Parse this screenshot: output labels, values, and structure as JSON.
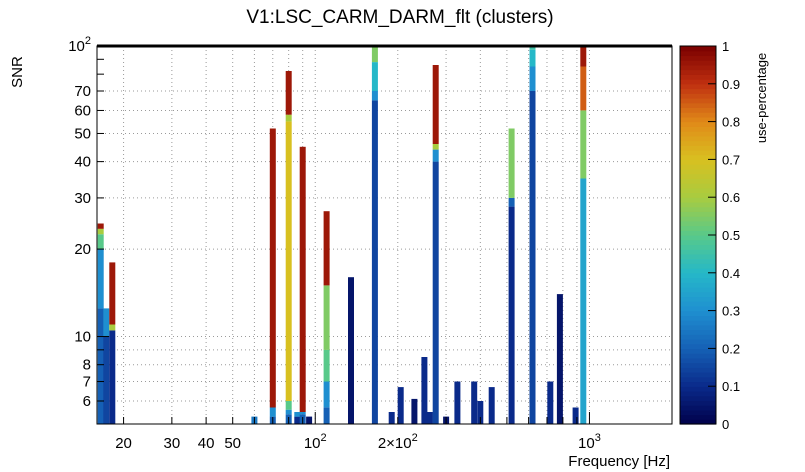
{
  "chart_data": {
    "type": "heatmap",
    "title": "V1:LSC_CARM_DARM_flt (clusters)",
    "xlabel": "Frequency [Hz]",
    "ylabel": "SNR",
    "colorbar_label": "use-percentage",
    "x_scale": "log",
    "y_scale": "log",
    "xlim": [
      16,
      2000
    ],
    "ylim": [
      5,
      100
    ],
    "grid": true,
    "x_tick_labels": [
      {
        "value": 20,
        "label": "20"
      },
      {
        "value": 30,
        "label": "30"
      },
      {
        "value": 40,
        "label": "40"
      },
      {
        "value": 50,
        "label": "50"
      },
      {
        "value": 100,
        "label": "10^2"
      },
      {
        "value": 200,
        "label": "2×10^2"
      },
      {
        "value": 1000,
        "label": "10^3"
      }
    ],
    "y_tick_labels": [
      {
        "value": 6,
        "label": "6"
      },
      {
        "value": 7,
        "label": "7"
      },
      {
        "value": 8,
        "label": "8"
      },
      {
        "value": 10,
        "label": "10"
      },
      {
        "value": 20,
        "label": "20"
      },
      {
        "value": 30,
        "label": "30"
      },
      {
        "value": 40,
        "label": "40"
      },
      {
        "value": 50,
        "label": "50"
      },
      {
        "value": 60,
        "label": "60"
      },
      {
        "value": 70,
        "label": "70"
      },
      {
        "value": 100,
        "label": "10^2"
      }
    ],
    "colorbar_ticks": [
      "0",
      "0.1",
      "0.2",
      "0.3",
      "0.4",
      "0.5",
      "0.6",
      "0.7",
      "0.8",
      "0.9",
      "1"
    ],
    "colormap": [
      "#00004a",
      "#0a2a8a",
      "#1560b5",
      "#1f8fd0",
      "#25b8c8",
      "#58c98a",
      "#a8cc40",
      "#d8c020",
      "#e08a18",
      "#c03010",
      "#7a0000"
    ],
    "columns": [
      {
        "freq": 16.5,
        "segments": [
          [
            5,
            12.5,
            0.2
          ],
          [
            12.5,
            20,
            0.3
          ],
          [
            20,
            22.5,
            0.5
          ],
          [
            22.5,
            23.5,
            0.6
          ],
          [
            23.5,
            24.5,
            0.95
          ]
        ]
      },
      {
        "freq": 17.3,
        "segments": [
          [
            5,
            10,
            0.15
          ],
          [
            10,
            12.5,
            0.3
          ]
        ]
      },
      {
        "freq": 18.2,
        "segments": [
          [
            5,
            10.5,
            0.1
          ],
          [
            10.5,
            11,
            0.6
          ],
          [
            11,
            18,
            0.95
          ]
        ]
      },
      {
        "freq": 60,
        "segments": [
          [
            5,
            5.3,
            0.25
          ]
        ]
      },
      {
        "freq": 70,
        "segments": [
          [
            5,
            5.3,
            0.2
          ],
          [
            5.3,
            5.7,
            0.3
          ],
          [
            5.7,
            52,
            0.95
          ]
        ]
      },
      {
        "freq": 80,
        "segments": [
          [
            5,
            5.4,
            0.2
          ],
          [
            5.4,
            5.6,
            0.3
          ],
          [
            5.6,
            6,
            0.5
          ],
          [
            6,
            55,
            0.7
          ],
          [
            55,
            58,
            0.6
          ],
          [
            58,
            82,
            0.95
          ]
        ]
      },
      {
        "freq": 86,
        "segments": [
          [
            5,
            5.3,
            0.1
          ],
          [
            5.3,
            5.5,
            0.3
          ]
        ]
      },
      {
        "freq": 90,
        "segments": [
          [
            5,
            5.4,
            0.2
          ],
          [
            5.4,
            5.5,
            0.3
          ],
          [
            5.5,
            45,
            0.95
          ]
        ]
      },
      {
        "freq": 95,
        "segments": [
          [
            5,
            5.3,
            0.05
          ]
        ]
      },
      {
        "freq": 110,
        "segments": [
          [
            5,
            5.7,
            0.2
          ],
          [
            5.7,
            7,
            0.3
          ],
          [
            7,
            9,
            0.5
          ],
          [
            9,
            15,
            0.55
          ],
          [
            15,
            27,
            0.95
          ]
        ]
      },
      {
        "freq": 135,
        "segments": [
          [
            5,
            16,
            0.05
          ]
        ]
      },
      {
        "freq": 165,
        "segments": [
          [
            5,
            65,
            0.15
          ],
          [
            65,
            70,
            0.3
          ],
          [
            70,
            88,
            0.4
          ],
          [
            88,
            100,
            0.55
          ]
        ]
      },
      {
        "freq": 190,
        "segments": [
          [
            5,
            5.5,
            0.1
          ]
        ]
      },
      {
        "freq": 205,
        "segments": [
          [
            5,
            6.7,
            0.1
          ]
        ]
      },
      {
        "freq": 230,
        "segments": [
          [
            5,
            6.1,
            0.05
          ]
        ]
      },
      {
        "freq": 250,
        "segments": [
          [
            5,
            8.5,
            0.1
          ]
        ]
      },
      {
        "freq": 262,
        "segments": [
          [
            5,
            5.5,
            0.1
          ]
        ]
      },
      {
        "freq": 275,
        "segments": [
          [
            5,
            40,
            0.15
          ],
          [
            40,
            44,
            0.3
          ],
          [
            44,
            46,
            0.6
          ],
          [
            46,
            86,
            0.95
          ]
        ]
      },
      {
        "freq": 300,
        "segments": [
          [
            5,
            5.3,
            0.05
          ]
        ]
      },
      {
        "freq": 330,
        "segments": [
          [
            5,
            7,
            0.1
          ]
        ]
      },
      {
        "freq": 380,
        "segments": [
          [
            5,
            7,
            0.1
          ]
        ]
      },
      {
        "freq": 400,
        "segments": [
          [
            5,
            6,
            0.1
          ]
        ]
      },
      {
        "freq": 440,
        "segments": [
          [
            5,
            6.7,
            0.1
          ]
        ]
      },
      {
        "freq": 520,
        "segments": [
          [
            5,
            28,
            0.1
          ],
          [
            28,
            30,
            0.2
          ],
          [
            30,
            52,
            0.55
          ]
        ]
      },
      {
        "freq": 620,
        "segments": [
          [
            5,
            70,
            0.15
          ],
          [
            70,
            85,
            0.3
          ],
          [
            85,
            97,
            0.4
          ],
          [
            97,
            100,
            0.45
          ]
        ]
      },
      {
        "freq": 720,
        "segments": [
          [
            5,
            7,
            0.1
          ]
        ]
      },
      {
        "freq": 780,
        "segments": [
          [
            5,
            14,
            0.05
          ]
        ]
      },
      {
        "freq": 890,
        "segments": [
          [
            5,
            5.7,
            0.1
          ]
        ]
      },
      {
        "freq": 950,
        "segments": [
          [
            5,
            35,
            0.35
          ],
          [
            35,
            60,
            0.55
          ],
          [
            60,
            85,
            0.85
          ],
          [
            85,
            100,
            0.95
          ]
        ]
      }
    ]
  }
}
